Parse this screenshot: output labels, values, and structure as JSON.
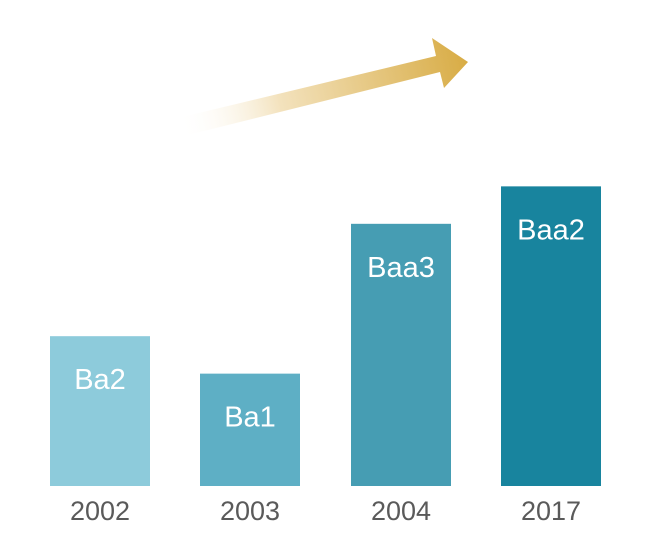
{
  "chart_data": {
    "type": "bar",
    "categories": [
      "2002",
      "2003",
      "2004",
      "2017"
    ],
    "values": [
      13,
      12,
      16,
      17
    ],
    "data_labels": [
      "Ba2",
      "Ba1",
      "Baa3",
      "Baa2"
    ],
    "bar_colors": [
      "#8dcbdb",
      "#5eafc5",
      "#469db3",
      "#18849e"
    ],
    "title": "",
    "xlabel": "",
    "ylabel": "",
    "ylim": [
      9,
      20
    ],
    "grid": false,
    "legend": "none",
    "trend_arrow": {
      "direction": "up-right",
      "color": "#dbb253"
    }
  }
}
